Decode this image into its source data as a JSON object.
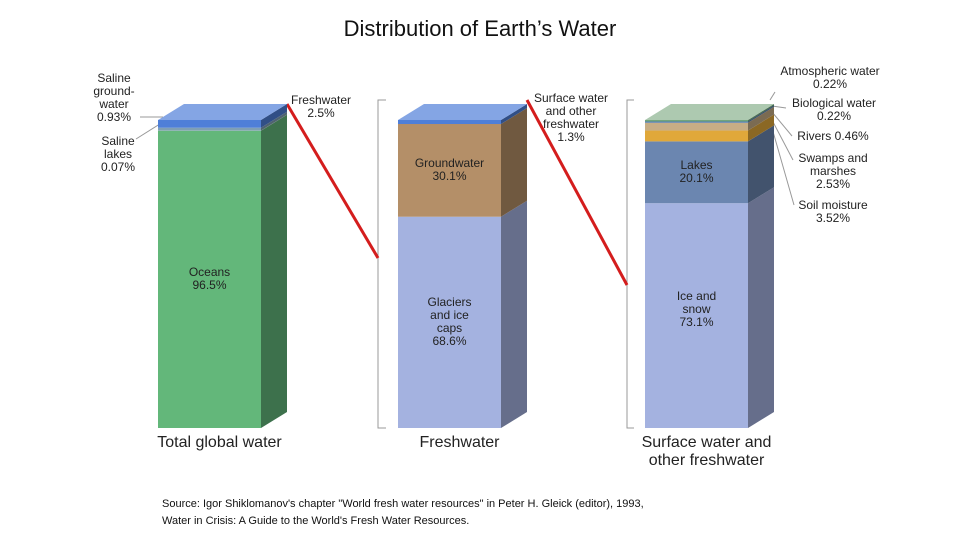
{
  "title": "Distribution of Earth’s Water",
  "source": [
    "Source: Igor Shiklomanov's chapter \"World fresh water resources\" in Peter H. Gleick (editor), 1993,",
    "Water in Crisis: A Guide to the World's Fresh Water Resources."
  ],
  "chart_data": [
    {
      "type": "stacked-column",
      "label": "Total global water",
      "series": [
        {
          "name": "Oceans",
          "color": "#63b77a",
          "values": [
            96.5
          ],
          "value_labels": [
            "96.5%"
          ]
        },
        {
          "name": "Saline lakes",
          "color": "#9cc7a6",
          "values": [
            0.07
          ],
          "value_labels": [
            "0.07%"
          ]
        },
        {
          "name": "Saline ground-water",
          "color": "#7f9fb5",
          "values": [
            0.93
          ],
          "value_labels": [
            "0.93%"
          ]
        },
        {
          "name": "Freshwater",
          "color": "#4f7fd8",
          "values": [
            2.5
          ],
          "value_labels": [
            "2.5%"
          ]
        }
      ]
    },
    {
      "type": "stacked-column",
      "label": "Freshwater",
      "series": [
        {
          "name": "Glaciers and ice caps",
          "color": "#a4b2e0",
          "values": [
            68.6
          ],
          "value_labels": [
            "68.6%"
          ]
        },
        {
          "name": "Groundwater",
          "color": "#b48f68",
          "values": [
            30.1
          ],
          "value_labels": [
            "30.1%"
          ]
        },
        {
          "name": "Surface water and other freshwater",
          "color": "#4f7fd8",
          "values": [
            1.3
          ],
          "value_labels": [
            "1.3%"
          ]
        }
      ]
    },
    {
      "type": "stacked-column",
      "label": "Surface water and other freshwater",
      "series": [
        {
          "name": "Ice and snow",
          "color": "#a4b2e0",
          "values": [
            73.1
          ],
          "value_labels": [
            "73.1%"
          ]
        },
        {
          "name": "Lakes",
          "color": "#6b86b0",
          "values": [
            20.1
          ],
          "value_labels": [
            "20.1%"
          ]
        },
        {
          "name": "Soil moisture",
          "color": "#e0a83a",
          "values": [
            3.52
          ],
          "value_labels": [
            "3.52%"
          ]
        },
        {
          "name": "Swamps and marshes",
          "color": "#c7ad85",
          "values": [
            2.53
          ],
          "value_labels": [
            "2.53%"
          ]
        },
        {
          "name": "Rivers",
          "color": "#5a7fb0",
          "values": [
            0.46
          ],
          "value_labels": [
            "0.46%"
          ]
        },
        {
          "name": "Biological water",
          "color": "#3f8f5a",
          "values": [
            0.22
          ],
          "value_labels": [
            "0.22%"
          ]
        },
        {
          "name": "Atmospheric water",
          "color": "#6a9c70",
          "values": [
            0.22
          ],
          "value_labels": [
            "0.22%"
          ]
        }
      ]
    }
  ]
}
